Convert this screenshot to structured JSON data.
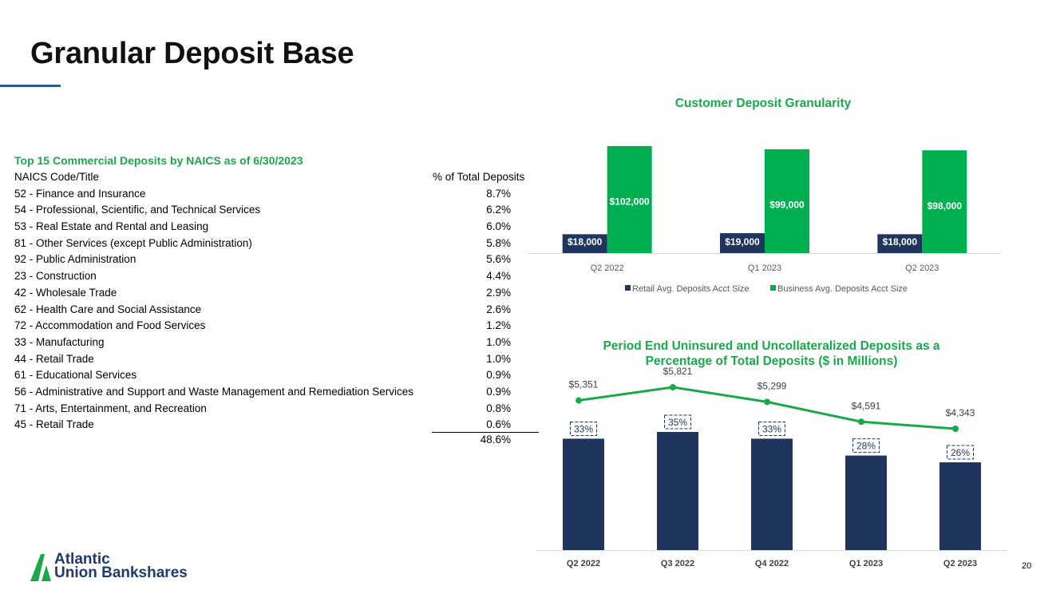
{
  "title": "Granular Deposit Base",
  "page_number": "20",
  "logo": {
    "line1": "Atlantic",
    "line2": "Union Bankshares",
    "color": "#1e3a6e"
  },
  "naics_table": {
    "heading": "Top 15 Commercial Deposits by NAICS as of 6/30/2023",
    "col_name": "NAICS Code/Title",
    "col_pct": "% of Total Deposits",
    "rows": [
      {
        "name": "52 - Finance and Insurance",
        "pct": "8.7%"
      },
      {
        "name": "54 - Professional, Scientific, and Technical Services",
        "pct": "6.2%"
      },
      {
        "name": "53 - Real Estate and Rental and Leasing",
        "pct": "6.0%"
      },
      {
        "name": "81 - Other Services (except Public Administration)",
        "pct": "5.8%"
      },
      {
        "name": "92 - Public Administration",
        "pct": "5.6%"
      },
      {
        "name": "23 - Construction",
        "pct": "4.4%"
      },
      {
        "name": "42 - Wholesale Trade",
        "pct": "2.9%"
      },
      {
        "name": "62 - Health Care and Social Assistance",
        "pct": "2.6%"
      },
      {
        "name": "72 - Accommodation and Food Services",
        "pct": "1.2%"
      },
      {
        "name": "33 - Manufacturing",
        "pct": "1.0%"
      },
      {
        "name": "44 - Retail Trade",
        "pct": "1.0%"
      },
      {
        "name": "61 - Educational Services",
        "pct": "0.9%"
      },
      {
        "name": "56 - Administrative and Support and Waste Management and Remediation Services",
        "pct": "0.9%"
      },
      {
        "name": "71 - Arts, Entertainment, and Recreation",
        "pct": "0.8%"
      },
      {
        "name": "45 - Retail Trade",
        "pct": "0.6%"
      }
    ],
    "total": "48.6%"
  },
  "chart_data": [
    {
      "type": "bar",
      "title": "Customer Deposit Granularity",
      "categories": [
        "Q2 2022",
        "Q1 2023",
        "Q2 2023"
      ],
      "series": [
        {
          "name": "Retail Avg. Deposits Acct Size",
          "values": [
            18000,
            19000,
            18000
          ],
          "labels": [
            "$18,000",
            "$19,000",
            "$18,000"
          ],
          "color": "#1f355e"
        },
        {
          "name": "Business Avg. Deposits Acct Size",
          "values": [
            102000,
            99000,
            98000
          ],
          "labels": [
            "$102,000",
            "$99,000",
            "$98,000"
          ],
          "color": "#00b050"
        }
      ],
      "ylim": [
        0,
        102000
      ],
      "legend": "bottom"
    },
    {
      "type": "bar+line",
      "title": "Period End Uninsured and Uncollateralized Deposits as a Percentage of Total Deposits ($ in Millions)",
      "categories": [
        "Q2 2022",
        "Q3 2022",
        "Q4 2022",
        "Q1 2023",
        "Q2 2023"
      ],
      "bars": {
        "values": [
          33,
          35,
          33,
          28,
          26
        ],
        "labels": [
          "33%",
          "35%",
          "33%",
          "28%",
          "26%"
        ],
        "color": "#1f355e"
      },
      "line": {
        "values": [
          5351,
          5821,
          5299,
          4591,
          4343
        ],
        "labels": [
          "$5,351",
          "$5,821",
          "$5,299",
          "$4,591",
          "$4,343"
        ],
        "color": "#1aa84a"
      },
      "legend": "none"
    }
  ]
}
